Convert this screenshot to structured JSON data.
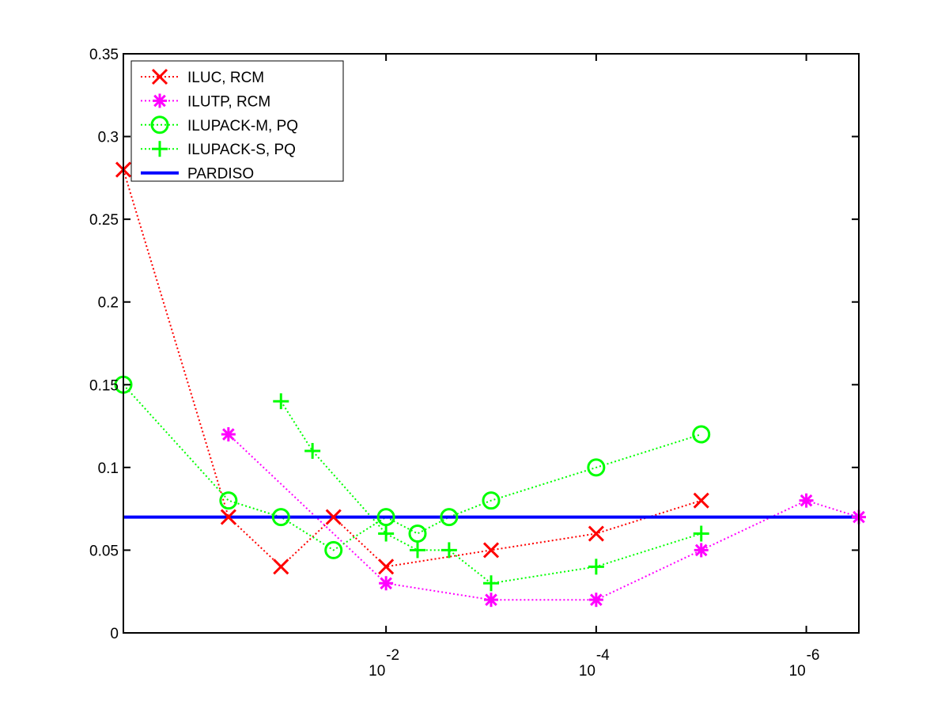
{
  "chart_data": {
    "type": "line",
    "title": "",
    "xlabel": "",
    "ylabel": "",
    "xscale": "log",
    "xlim": [
      0.5,
      -6.5
    ],
    "ylim": [
      0,
      0.35
    ],
    "x_axis_reversed": true,
    "grid": false,
    "legend_position": "top-left",
    "yticks": [
      "0",
      "0.05",
      "0.1",
      "0.15",
      "0.2",
      "0.25",
      "0.3",
      "0.35"
    ],
    "ytick_values": [
      0,
      0.05,
      0.1,
      0.15,
      0.2,
      0.25,
      0.3,
      0.35
    ],
    "xticks": [
      {
        "exponent": -2,
        "base": "10",
        "power": "-2"
      },
      {
        "exponent": -4,
        "base": "10",
        "power": "-4"
      },
      {
        "exponent": -6,
        "base": "10",
        "power": "-6"
      }
    ],
    "x_note": "x values are base-10 exponents (tick labels 10^-2, 10^-4, 10^-6)",
    "series": [
      {
        "name": "ILUC, RCM",
        "color": "#ff0000",
        "marker": "x",
        "linestyle": "dotted",
        "x": [
          0.5,
          -0.5,
          -1.0,
          -1.5,
          -2.0,
          -3.0,
          -4.0,
          -5.0
        ],
        "values": [
          0.28,
          0.07,
          0.04,
          0.07,
          0.04,
          0.05,
          0.06,
          0.08
        ]
      },
      {
        "name": "ILUTP, RCM",
        "color": "#ff00ff",
        "marker": "asterisk",
        "linestyle": "dotted",
        "x": [
          -0.5,
          -2.0,
          -3.0,
          -4.0,
          -5.0,
          -6.0,
          -6.5
        ],
        "values": [
          0.12,
          0.03,
          0.02,
          0.02,
          0.05,
          0.08,
          0.07
        ]
      },
      {
        "name": "ILUPACK-M, PQ",
        "color": "#00ff00",
        "marker": "circle",
        "linestyle": "dotted",
        "x": [
          0.5,
          -0.5,
          -1.0,
          -1.5,
          -2.0,
          -2.3,
          -2.6,
          -3.0,
          -4.0,
          -5.0
        ],
        "values": [
          0.15,
          0.08,
          0.07,
          0.05,
          0.07,
          0.06,
          0.07,
          0.08,
          0.1,
          0.12
        ]
      },
      {
        "name": "ILUPACK-S, PQ",
        "color": "#00ff00",
        "marker": "plus",
        "linestyle": "dotted",
        "x": [
          -1.0,
          -1.3,
          -2.0,
          -2.3,
          -2.6,
          -3.0,
          -4.0,
          -5.0
        ],
        "values": [
          0.14,
          0.11,
          0.06,
          0.05,
          0.05,
          0.03,
          0.04,
          0.06
        ]
      },
      {
        "name": "PARDISO",
        "color": "#0000ff",
        "marker": "none",
        "linestyle": "solid",
        "x": [
          0.5,
          -6.5
        ],
        "values": [
          0.07,
          0.07
        ]
      }
    ]
  }
}
